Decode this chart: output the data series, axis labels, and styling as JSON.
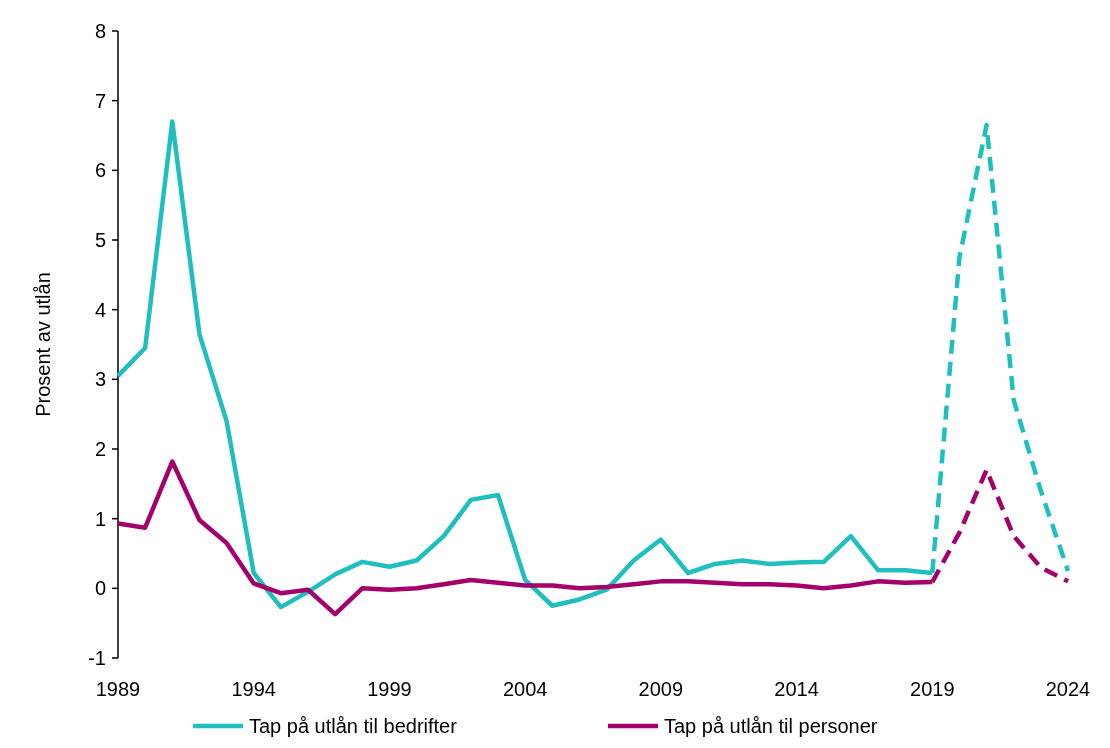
{
  "chart_data": {
    "type": "line",
    "ylabel": "Prosent av utlån",
    "xlim": [
      1989,
      2024
    ],
    "xticks": [
      1989,
      1994,
      1999,
      2004,
      2009,
      2014,
      2019,
      2024
    ],
    "ylim": [
      -1,
      8
    ],
    "yticks": [
      -1,
      0,
      1,
      2,
      3,
      4,
      5,
      6,
      7,
      8
    ],
    "grid": false,
    "legend": "bottom",
    "series": [
      {
        "name": "Tap på utlån til bedrifter",
        "color": "#1fbfbf",
        "line_style": "solid",
        "x": [
          1989,
          1990,
          1991,
          1992,
          1993,
          1994,
          1995,
          1996,
          1997,
          1998,
          1999,
          2000,
          2001,
          2002,
          2003,
          2004,
          2005,
          2006,
          2007,
          2008,
          2009,
          2010,
          2011,
          2012,
          2013,
          2014,
          2015,
          2016,
          2017,
          2018,
          2019
        ],
        "values": [
          3.05,
          3.45,
          6.7,
          3.65,
          2.4,
          0.22,
          -0.27,
          -0.05,
          0.2,
          0.38,
          0.31,
          0.4,
          0.75,
          1.27,
          1.34,
          0.12,
          -0.25,
          -0.16,
          -0.02,
          0.4,
          0.7,
          0.22,
          0.35,
          0.4,
          0.35,
          0.37,
          0.38,
          0.75,
          0.26,
          0.26,
          0.22
        ]
      },
      {
        "name": "Tap på utlån til personer",
        "color": "#a3006b",
        "line_style": "solid",
        "x": [
          1989,
          1990,
          1991,
          1992,
          1993,
          1994,
          1995,
          1996,
          1997,
          1998,
          1999,
          2000,
          2001,
          2002,
          2003,
          2004,
          2005,
          2006,
          2007,
          2008,
          2009,
          2010,
          2011,
          2012,
          2013,
          2014,
          2015,
          2016,
          2017,
          2018,
          2019
        ],
        "values": [
          0.93,
          0.87,
          1.82,
          0.98,
          0.65,
          0.07,
          -0.07,
          -0.02,
          -0.37,
          0.0,
          -0.02,
          0.0,
          0.06,
          0.12,
          0.08,
          0.04,
          0.04,
          0.0,
          0.02,
          0.06,
          0.1,
          0.1,
          0.08,
          0.06,
          0.06,
          0.04,
          0.0,
          0.04,
          0.1,
          0.08,
          0.09
        ]
      },
      {
        "color": "#1fbfbf",
        "line_style": "dashed",
        "x": [
          2019,
          2020,
          2021,
          2022,
          2023,
          2024
        ],
        "values": [
          0.22,
          4.75,
          6.65,
          2.7,
          1.4,
          0.25
        ]
      },
      {
        "color": "#a3006b",
        "line_style": "dashed",
        "x": [
          2019,
          2020,
          2021,
          2022,
          2023,
          2024
        ],
        "values": [
          0.09,
          0.8,
          1.7,
          0.75,
          0.3,
          0.1
        ]
      }
    ]
  }
}
